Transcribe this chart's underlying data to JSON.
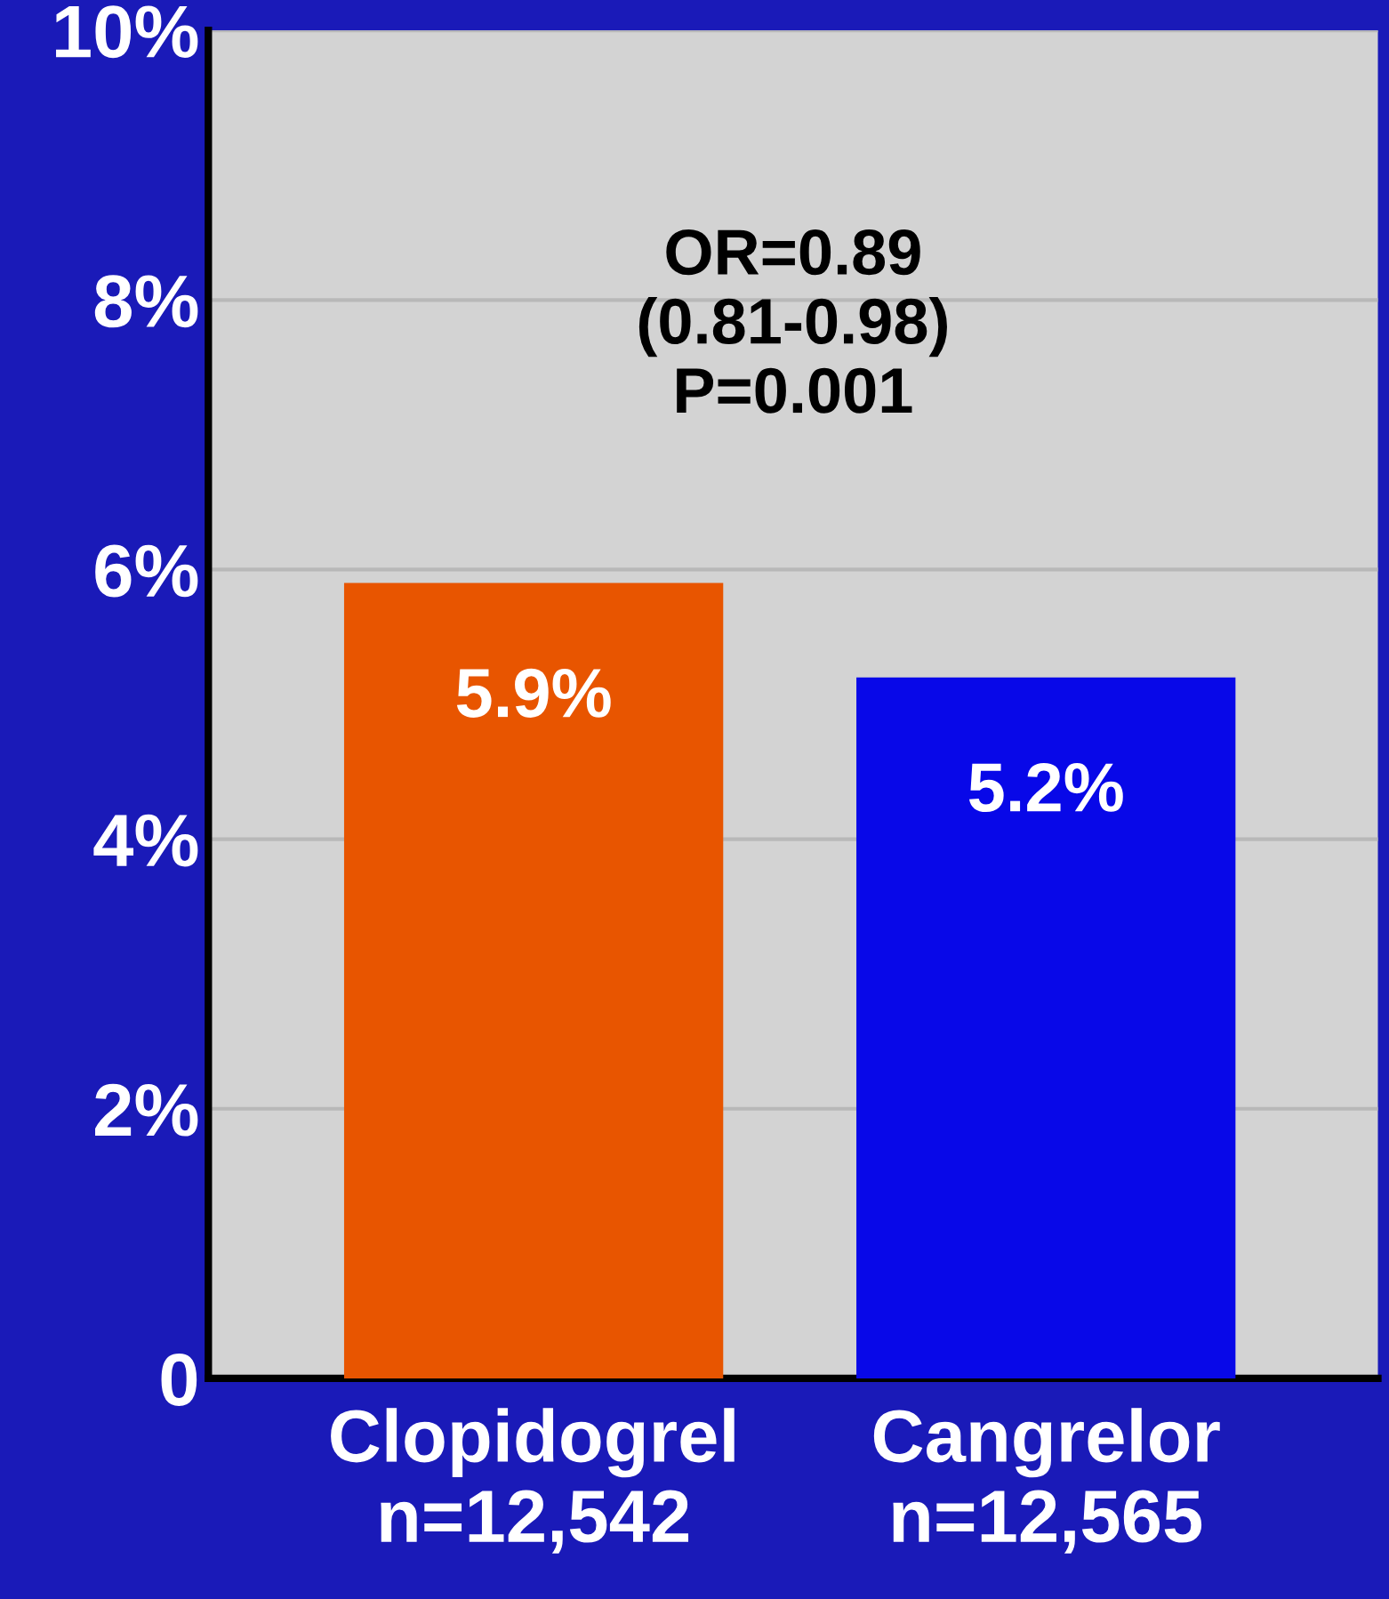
{
  "chart_data": {
    "type": "bar",
    "categories": [
      "Clopidogrel\nn=12,542",
      "Cangrelor\nn=12,565"
    ],
    "values": [
      5.9,
      5.2
    ],
    "colors": [
      "#e85500",
      "#0808e8"
    ],
    "value_labels": [
      "5.9%",
      "5.2%"
    ],
    "ylim": [
      0,
      10
    ],
    "yticks": [
      {
        "value": 0,
        "label": "0"
      },
      {
        "value": 2,
        "label": "2%"
      },
      {
        "value": 4,
        "label": "4%"
      },
      {
        "value": 6,
        "label": "6%"
      },
      {
        "value": 8,
        "label": "8%"
      },
      {
        "value": 10,
        "label": "10%"
      }
    ],
    "grid": "y",
    "annotations": [
      "OR=0.89\n(0.81-0.98)\nP=0.001"
    ]
  }
}
